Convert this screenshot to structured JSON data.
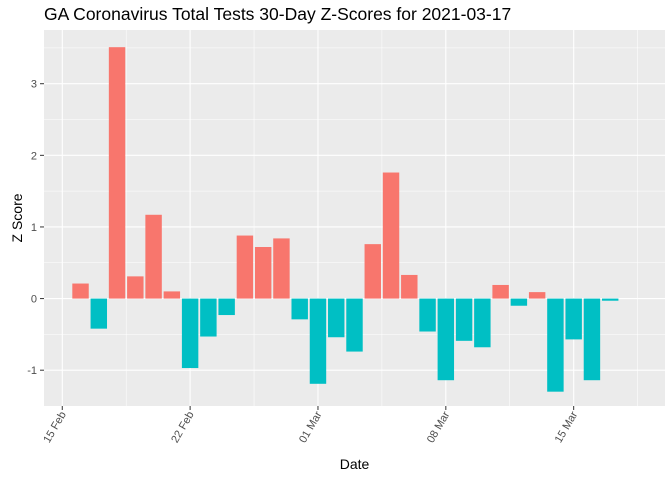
{
  "chart_data": {
    "type": "bar",
    "title": "GA Coronavirus Total Tests 30-Day Z-Scores for 2021-03-17",
    "xlabel": "Date",
    "ylabel": "Z Score",
    "x_start": "2021-02-14",
    "x_end": "2021-03-20",
    "ylim": [
      -1.5,
      3.75
    ],
    "grid": true,
    "legend": "none",
    "x_ticks": [
      {
        "date": "2021-02-15",
        "label": "15 Feb"
      },
      {
        "date": "2021-02-22",
        "label": "22 Feb"
      },
      {
        "date": "2021-03-01",
        "label": "01 Mar"
      },
      {
        "date": "2021-03-08",
        "label": "08 Mar"
      },
      {
        "date": "2021-03-15",
        "label": "15 Mar"
      }
    ],
    "y_ticks": [
      -1,
      0,
      1,
      2,
      3
    ],
    "colors": {
      "positive": "#f8766d",
      "negative": "#00bfc4",
      "panel": "#ebebeb",
      "grid": "#ffffff"
    },
    "dates": [
      "2021-02-16",
      "2021-02-17",
      "2021-02-18",
      "2021-02-19",
      "2021-02-20",
      "2021-02-21",
      "2021-02-22",
      "2021-02-23",
      "2021-02-24",
      "2021-02-25",
      "2021-02-26",
      "2021-02-27",
      "2021-02-28",
      "2021-03-01",
      "2021-03-02",
      "2021-03-03",
      "2021-03-04",
      "2021-03-05",
      "2021-03-06",
      "2021-03-07",
      "2021-03-08",
      "2021-03-09",
      "2021-03-10",
      "2021-03-11",
      "2021-03-12",
      "2021-03-13",
      "2021-03-14",
      "2021-03-15",
      "2021-03-16",
      "2021-03-17"
    ],
    "values": [
      0.21,
      -0.42,
      3.51,
      0.31,
      1.17,
      0.1,
      -0.97,
      -0.53,
      -0.23,
      0.88,
      0.72,
      0.84,
      -0.29,
      -1.19,
      -0.54,
      -0.74,
      0.76,
      1.76,
      0.33,
      -0.46,
      -1.14,
      -0.59,
      -0.68,
      0.19,
      -0.1,
      0.09,
      -1.3,
      -0.57,
      -1.14,
      -0.03
    ]
  }
}
